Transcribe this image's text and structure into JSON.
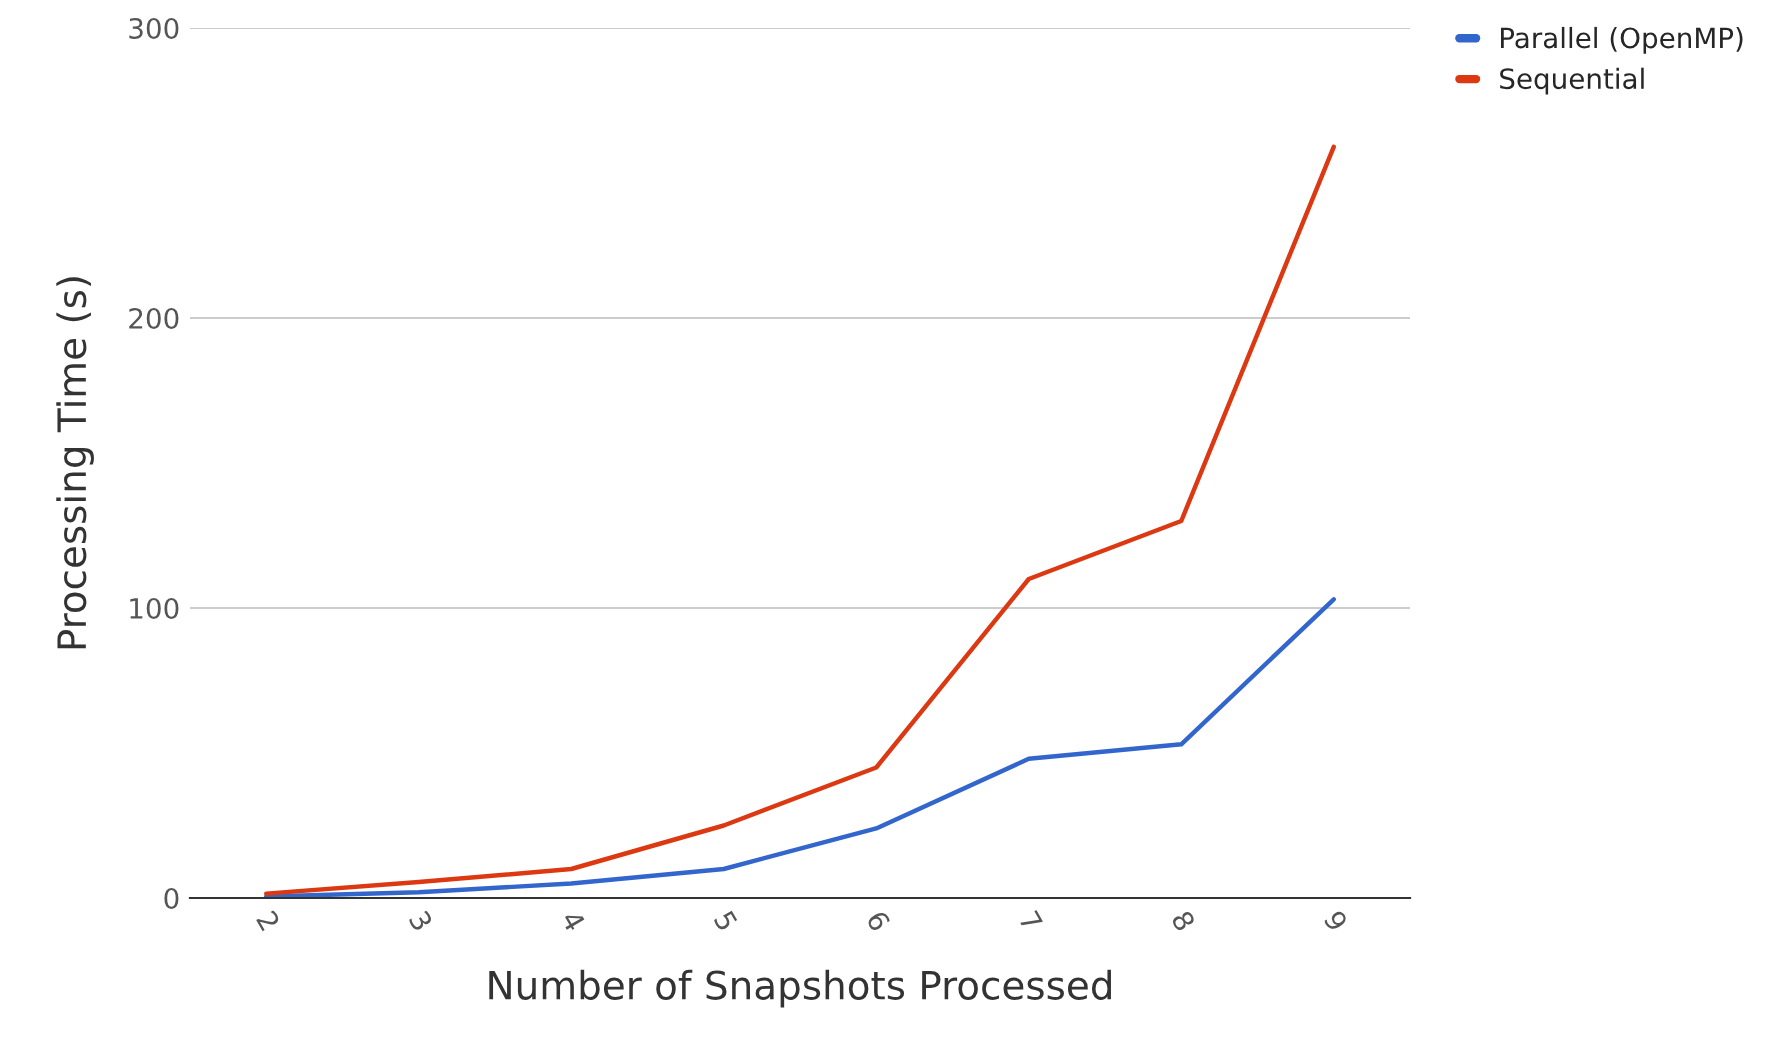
{
  "chart_data": {
    "type": "line",
    "xlabel": "Number of Snapshots Processed",
    "ylabel": "Processing Time (s)",
    "categories": [
      "2",
      "3",
      "4",
      "5",
      "6",
      "7",
      "8",
      "9"
    ],
    "series": [
      {
        "name": "Parallel (OpenMP)",
        "color": "#3366cc",
        "values": [
          0.5,
          2,
          5,
          10,
          24,
          48,
          53,
          103
        ]
      },
      {
        "name": "Sequential",
        "color": "#dc3912",
        "values": [
          1.5,
          5.5,
          10,
          25,
          45,
          110,
          130,
          259
        ]
      }
    ],
    "ylim": [
      0,
      300
    ],
    "yticks": [
      0,
      100,
      200,
      300
    ],
    "grid": "y",
    "legend": "top right",
    "marker": "none",
    "line_style": "solid"
  }
}
